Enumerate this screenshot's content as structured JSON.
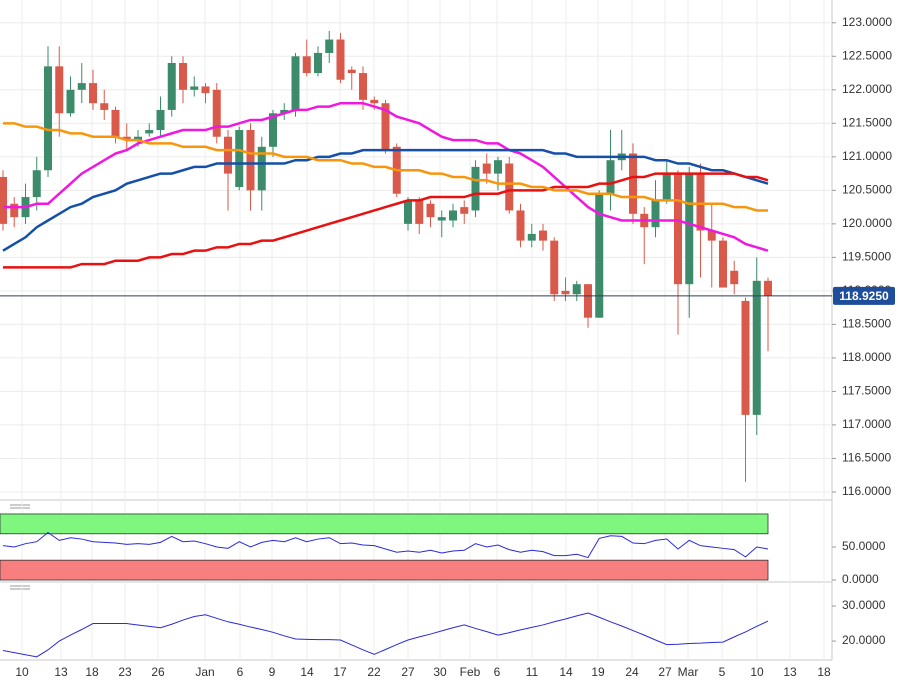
{
  "chart_data": [
    {
      "type": "candlestick",
      "x_labels": [
        "10",
        "13",
        "18",
        "23",
        "26",
        "Jan",
        "6",
        "9",
        "14",
        "17",
        "22",
        "27",
        "30",
        "Feb",
        "6",
        "11",
        "14",
        "19",
        "24",
        "27",
        "Mar",
        "5",
        "10",
        "13",
        "18"
      ],
      "open": [
        120.7,
        120.3,
        120.1,
        120.4,
        120.8,
        122.35,
        121.65,
        122.0,
        122.1,
        121.8,
        121.7,
        121.3,
        121.25,
        121.35,
        121.4,
        121.7,
        122.4,
        122.0,
        122.05,
        122.0,
        121.3,
        120.55,
        121.4,
        120.5,
        121.15,
        121.65,
        121.7,
        122.5,
        122.25,
        122.55,
        122.75,
        122.3,
        122.25,
        121.85,
        121.8,
        121.15,
        120.0,
        120.35,
        120.3,
        120.05,
        120.05,
        120.25,
        120.2,
        120.9,
        120.75,
        120.9,
        120.2,
        119.75,
        119.9,
        119.75,
        119.0,
        118.95,
        119.1,
        118.6,
        120.45,
        120.95,
        121.05,
        120.15,
        119.95,
        120.35,
        120.75,
        119.1,
        120.75,
        119.9,
        119.75,
        119.3,
        118.85,
        117.15,
        119.15
      ],
      "high": [
        120.8,
        120.4,
        120.6,
        121.0,
        122.65,
        122.65,
        122.2,
        122.4,
        122.3,
        122.0,
        121.75,
        121.5,
        121.4,
        121.5,
        121.9,
        122.5,
        122.5,
        122.2,
        122.1,
        122.1,
        121.4,
        121.45,
        121.5,
        121.3,
        121.7,
        121.8,
        122.55,
        122.75,
        122.65,
        122.88,
        122.85,
        122.35,
        122.35,
        121.9,
        121.85,
        121.2,
        120.4,
        120.4,
        120.35,
        120.2,
        120.3,
        120.35,
        120.95,
        121.05,
        121.0,
        121.0,
        120.3,
        120.0,
        120.0,
        119.8,
        119.2,
        119.15,
        119.1,
        120.5,
        121.4,
        121.4,
        121.2,
        120.25,
        120.65,
        120.95,
        120.8,
        120.85,
        120.9,
        120.3,
        119.8,
        119.45,
        118.9,
        119.5,
        119.2
      ],
      "low": [
        119.9,
        119.95,
        120.0,
        120.2,
        120.7,
        121.3,
        121.6,
        121.8,
        121.7,
        121.55,
        121.2,
        121.1,
        121.15,
        121.3,
        121.3,
        121.6,
        121.8,
        121.9,
        121.8,
        121.2,
        120.2,
        120.5,
        120.2,
        120.2,
        121.0,
        121.55,
        121.6,
        122.2,
        122.2,
        122.4,
        122.1,
        122.0,
        121.7,
        121.7,
        121.05,
        120.4,
        119.9,
        119.85,
        119.95,
        119.8,
        119.95,
        120.0,
        120.1,
        120.6,
        120.5,
        120.15,
        119.65,
        119.65,
        119.6,
        118.85,
        118.85,
        118.85,
        118.45,
        118.6,
        120.2,
        120.8,
        120.0,
        119.4,
        119.8,
        120.3,
        118.35,
        118.6,
        119.2,
        119.05,
        119.05,
        118.95,
        116.15,
        116.85,
        118.1
      ],
      "close": [
        120.0,
        120.1,
        120.4,
        120.8,
        122.35,
        121.65,
        122.0,
        122.1,
        121.8,
        121.7,
        121.3,
        121.25,
        121.3,
        121.4,
        121.7,
        122.4,
        122.0,
        122.05,
        121.95,
        121.3,
        120.75,
        121.4,
        120.5,
        121.15,
        121.65,
        121.7,
        122.5,
        122.25,
        122.55,
        122.75,
        122.15,
        122.25,
        121.85,
        121.8,
        121.1,
        120.45,
        120.35,
        120.0,
        120.1,
        120.1,
        120.2,
        120.15,
        120.85,
        120.75,
        120.95,
        120.2,
        119.75,
        119.85,
        119.75,
        118.95,
        118.95,
        119.1,
        118.6,
        120.45,
        120.95,
        121.05,
        120.15,
        119.95,
        120.35,
        120.75,
        119.1,
        120.75,
        119.9,
        119.75,
        119.05,
        119.1,
        117.15,
        119.15,
        118.925
      ],
      "up_color": "#3c8c6c",
      "down_color": "#d95a4b",
      "series": [
        {
          "color": "#f018e0",
          "values": [
            120.25,
            120.25,
            120.25,
            120.3,
            120.3,
            120.45,
            120.6,
            120.75,
            120.85,
            120.95,
            121.05,
            121.1,
            121.2,
            121.25,
            121.3,
            121.35,
            121.4,
            121.4,
            121.4,
            121.45,
            121.45,
            121.5,
            121.55,
            121.55,
            121.6,
            121.65,
            121.7,
            121.7,
            121.75,
            121.75,
            121.8,
            121.8,
            121.8,
            121.75,
            121.7,
            121.6,
            121.55,
            121.5,
            121.4,
            121.3,
            121.25,
            121.25,
            121.25,
            121.2,
            121.2,
            121.1,
            121.05,
            120.95,
            120.85,
            120.7,
            120.55,
            120.4,
            120.25,
            120.15,
            120.1,
            120.05,
            120.05,
            120.05,
            120.05,
            120.05,
            120.05,
            120.0,
            119.95,
            119.9,
            119.85,
            119.8,
            119.7,
            119.65,
            119.6
          ]
        },
        {
          "color": "#1450a8",
          "values": [
            119.6,
            119.7,
            119.8,
            119.95,
            120.05,
            120.15,
            120.25,
            120.3,
            120.4,
            120.45,
            120.5,
            120.6,
            120.65,
            120.7,
            120.75,
            120.75,
            120.8,
            120.85,
            120.85,
            120.9,
            120.9,
            120.9,
            120.9,
            120.9,
            120.9,
            120.9,
            120.95,
            120.95,
            121.0,
            121.0,
            121.05,
            121.05,
            121.1,
            121.1,
            121.1,
            121.1,
            121.1,
            121.1,
            121.1,
            121.1,
            121.1,
            121.1,
            121.1,
            121.1,
            121.1,
            121.1,
            121.1,
            121.1,
            121.1,
            121.05,
            121.05,
            121.0,
            121.0,
            121.0,
            121.0,
            121.0,
            121.0,
            121.0,
            120.95,
            120.95,
            120.9,
            120.9,
            120.85,
            120.8,
            120.8,
            120.75,
            120.7,
            120.65,
            120.6
          ]
        },
        {
          "color": "#e81010",
          "values": [
            119.35,
            119.35,
            119.35,
            119.35,
            119.35,
            119.35,
            119.35,
            119.4,
            119.4,
            119.4,
            119.45,
            119.45,
            119.45,
            119.5,
            119.5,
            119.55,
            119.55,
            119.6,
            119.6,
            119.65,
            119.65,
            119.7,
            119.7,
            119.75,
            119.75,
            119.8,
            119.85,
            119.9,
            119.95,
            120.0,
            120.05,
            120.1,
            120.15,
            120.2,
            120.25,
            120.3,
            120.35,
            120.35,
            120.4,
            120.4,
            120.4,
            120.4,
            120.45,
            120.45,
            120.45,
            120.5,
            120.5,
            120.5,
            120.5,
            120.55,
            120.55,
            120.55,
            120.55,
            120.6,
            120.6,
            120.65,
            120.7,
            120.7,
            120.75,
            120.75,
            120.75,
            120.75,
            120.75,
            120.75,
            120.75,
            120.75,
            120.7,
            120.7,
            120.65
          ]
        },
        {
          "color": "#f7960c",
          "values": [
            121.5,
            121.5,
            121.45,
            121.45,
            121.4,
            121.4,
            121.35,
            121.35,
            121.3,
            121.3,
            121.3,
            121.25,
            121.25,
            121.2,
            121.2,
            121.2,
            121.15,
            121.15,
            121.15,
            121.1,
            121.1,
            121.1,
            121.05,
            121.05,
            121.05,
            121.0,
            121.0,
            121.0,
            120.95,
            120.95,
            120.95,
            120.9,
            120.9,
            120.85,
            120.85,
            120.8,
            120.8,
            120.8,
            120.75,
            120.75,
            120.7,
            120.7,
            120.65,
            120.65,
            120.6,
            120.6,
            120.6,
            120.55,
            120.55,
            120.5,
            120.5,
            120.5,
            120.45,
            120.45,
            120.45,
            120.4,
            120.4,
            120.4,
            120.35,
            120.35,
            120.35,
            120.3,
            120.3,
            120.3,
            120.3,
            120.25,
            120.25,
            120.2,
            120.2
          ]
        }
      ],
      "last_value": 118.925,
      "last_value_label": "118.9250",
      "last_color": "#1e4d9c",
      "ylim": [
        115.88,
        123.34
      ],
      "yticks": [
        {
          "value": 116,
          "label": "116.0000"
        },
        {
          "value": 116.5,
          "label": "116.5000"
        },
        {
          "value": 117,
          "label": "117.0000"
        },
        {
          "value": 117.5,
          "label": "117.5000"
        },
        {
          "value": 118,
          "label": "118.0000"
        },
        {
          "value": 118.5,
          "label": "118.5000"
        },
        {
          "value": 119,
          "label": "119.0000"
        },
        {
          "value": 119.5,
          "label": "119.5000"
        },
        {
          "value": 120,
          "label": "120.0000"
        },
        {
          "value": 120.5,
          "label": "120.5000"
        },
        {
          "value": 121,
          "label": "121.0000"
        },
        {
          "value": 121.5,
          "label": "121.5000"
        },
        {
          "value": 122,
          "label": "122.0000"
        },
        {
          "value": 122.5,
          "label": "122.5000"
        },
        {
          "value": 123,
          "label": "123.0000"
        }
      ],
      "grid": true
    },
    {
      "type": "line",
      "color": "#2a2ad8",
      "values": [
        52,
        50,
        55,
        58,
        72,
        60,
        64,
        62,
        58,
        57,
        56,
        54,
        55,
        54,
        57,
        66,
        58,
        59,
        55,
        50,
        48,
        58,
        50,
        57,
        60,
        58,
        64,
        58,
        62,
        64,
        55,
        56,
        53,
        52,
        47,
        42,
        44,
        42,
        45,
        41,
        44,
        45,
        55,
        50,
        53,
        46,
        42,
        45,
        43,
        37,
        37,
        39,
        34,
        63,
        67,
        66,
        56,
        55,
        60,
        62,
        47,
        60,
        52,
        50,
        48,
        46,
        35,
        50,
        47
      ],
      "bands": [
        {
          "from": 70,
          "to": 100,
          "color": "#7ff77f"
        },
        {
          "from": 0,
          "to": 30,
          "color": "#f77f7f"
        }
      ],
      "ylim": [
        0,
        104.5
      ],
      "yticks": [
        {
          "value": 0,
          "label": "0.0000"
        },
        {
          "value": 50,
          "label": "50.0000"
        }
      ]
    },
    {
      "type": "line",
      "color": "#2a2ad8",
      "values": [
        17.3,
        16.7,
        16.1,
        15.5,
        17.5,
        20,
        21.7,
        23.3,
        25,
        25,
        25,
        25,
        24.6,
        24.2,
        23.8,
        24.8,
        26,
        27,
        27.5,
        26.5,
        25.5,
        24.8,
        24,
        23.3,
        22.5,
        21.5,
        20.6,
        20.5,
        20.4,
        20.4,
        20.3,
        18.9,
        17.5,
        16.2,
        17.6,
        19,
        20.3,
        21.2,
        22,
        22.9,
        23.8,
        24.6,
        23.6,
        22.7,
        21.7,
        22.4,
        23.2,
        23.9,
        24.6,
        25.5,
        26.3,
        27.2,
        28,
        26.8,
        25.5,
        24.3,
        23,
        21.7,
        20.3,
        19,
        19.1,
        19.3,
        19.4,
        19.6,
        19.7,
        21.2,
        22.6,
        24.2,
        25.7
      ],
      "ylim": [
        14.6,
        34
      ],
      "yticks": [
        {
          "value": 20,
          "label": "20.0000"
        },
        {
          "value": 30,
          "label": "30.0000"
        }
      ]
    }
  ]
}
